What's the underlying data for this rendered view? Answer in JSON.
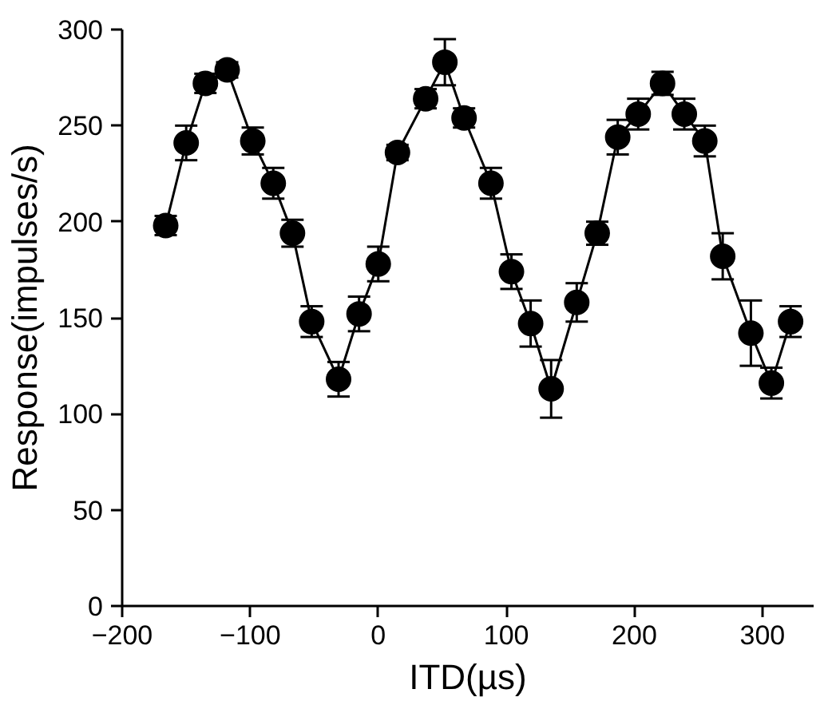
{
  "chart_data": {
    "type": "line",
    "xlabel": "ITD(µs)",
    "ylabel": "Response(impulses/s)",
    "x": [
      -166,
      -150,
      -135,
      -118,
      -98,
      -82,
      -67,
      -52,
      -31,
      -15,
      0,
      15,
      37,
      52,
      67,
      88,
      104,
      119,
      135,
      155,
      171,
      187,
      203,
      222,
      239,
      255,
      269,
      291,
      307,
      322
    ],
    "series": [
      {
        "color": "#000000",
        "values": [
          198,
          241,
          272,
          279,
          242,
          220,
          194,
          148,
          118,
          152,
          178,
          236,
          264,
          283,
          254,
          220,
          174,
          147,
          113,
          158,
          194,
          244,
          256,
          272,
          256,
          242,
          182,
          142,
          116,
          148
        ],
        "errors": [
          5,
          9,
          5,
          4,
          7,
          8,
          7,
          8,
          9,
          9,
          9,
          4,
          5,
          12,
          5,
          8,
          9,
          12,
          15,
          10,
          6,
          9,
          8,
          6,
          8,
          8,
          12,
          17,
          8,
          8
        ]
      }
    ],
    "xlim": [
      -200,
      340
    ],
    "ylim": [
      0,
      300
    ],
    "xticks": [
      -200,
      -100,
      0,
      100,
      200,
      300
    ],
    "yticks": [
      0,
      50,
      100,
      150,
      200,
      250,
      300
    ],
    "marker": "circle",
    "line_style": "solid",
    "grid": false
  }
}
